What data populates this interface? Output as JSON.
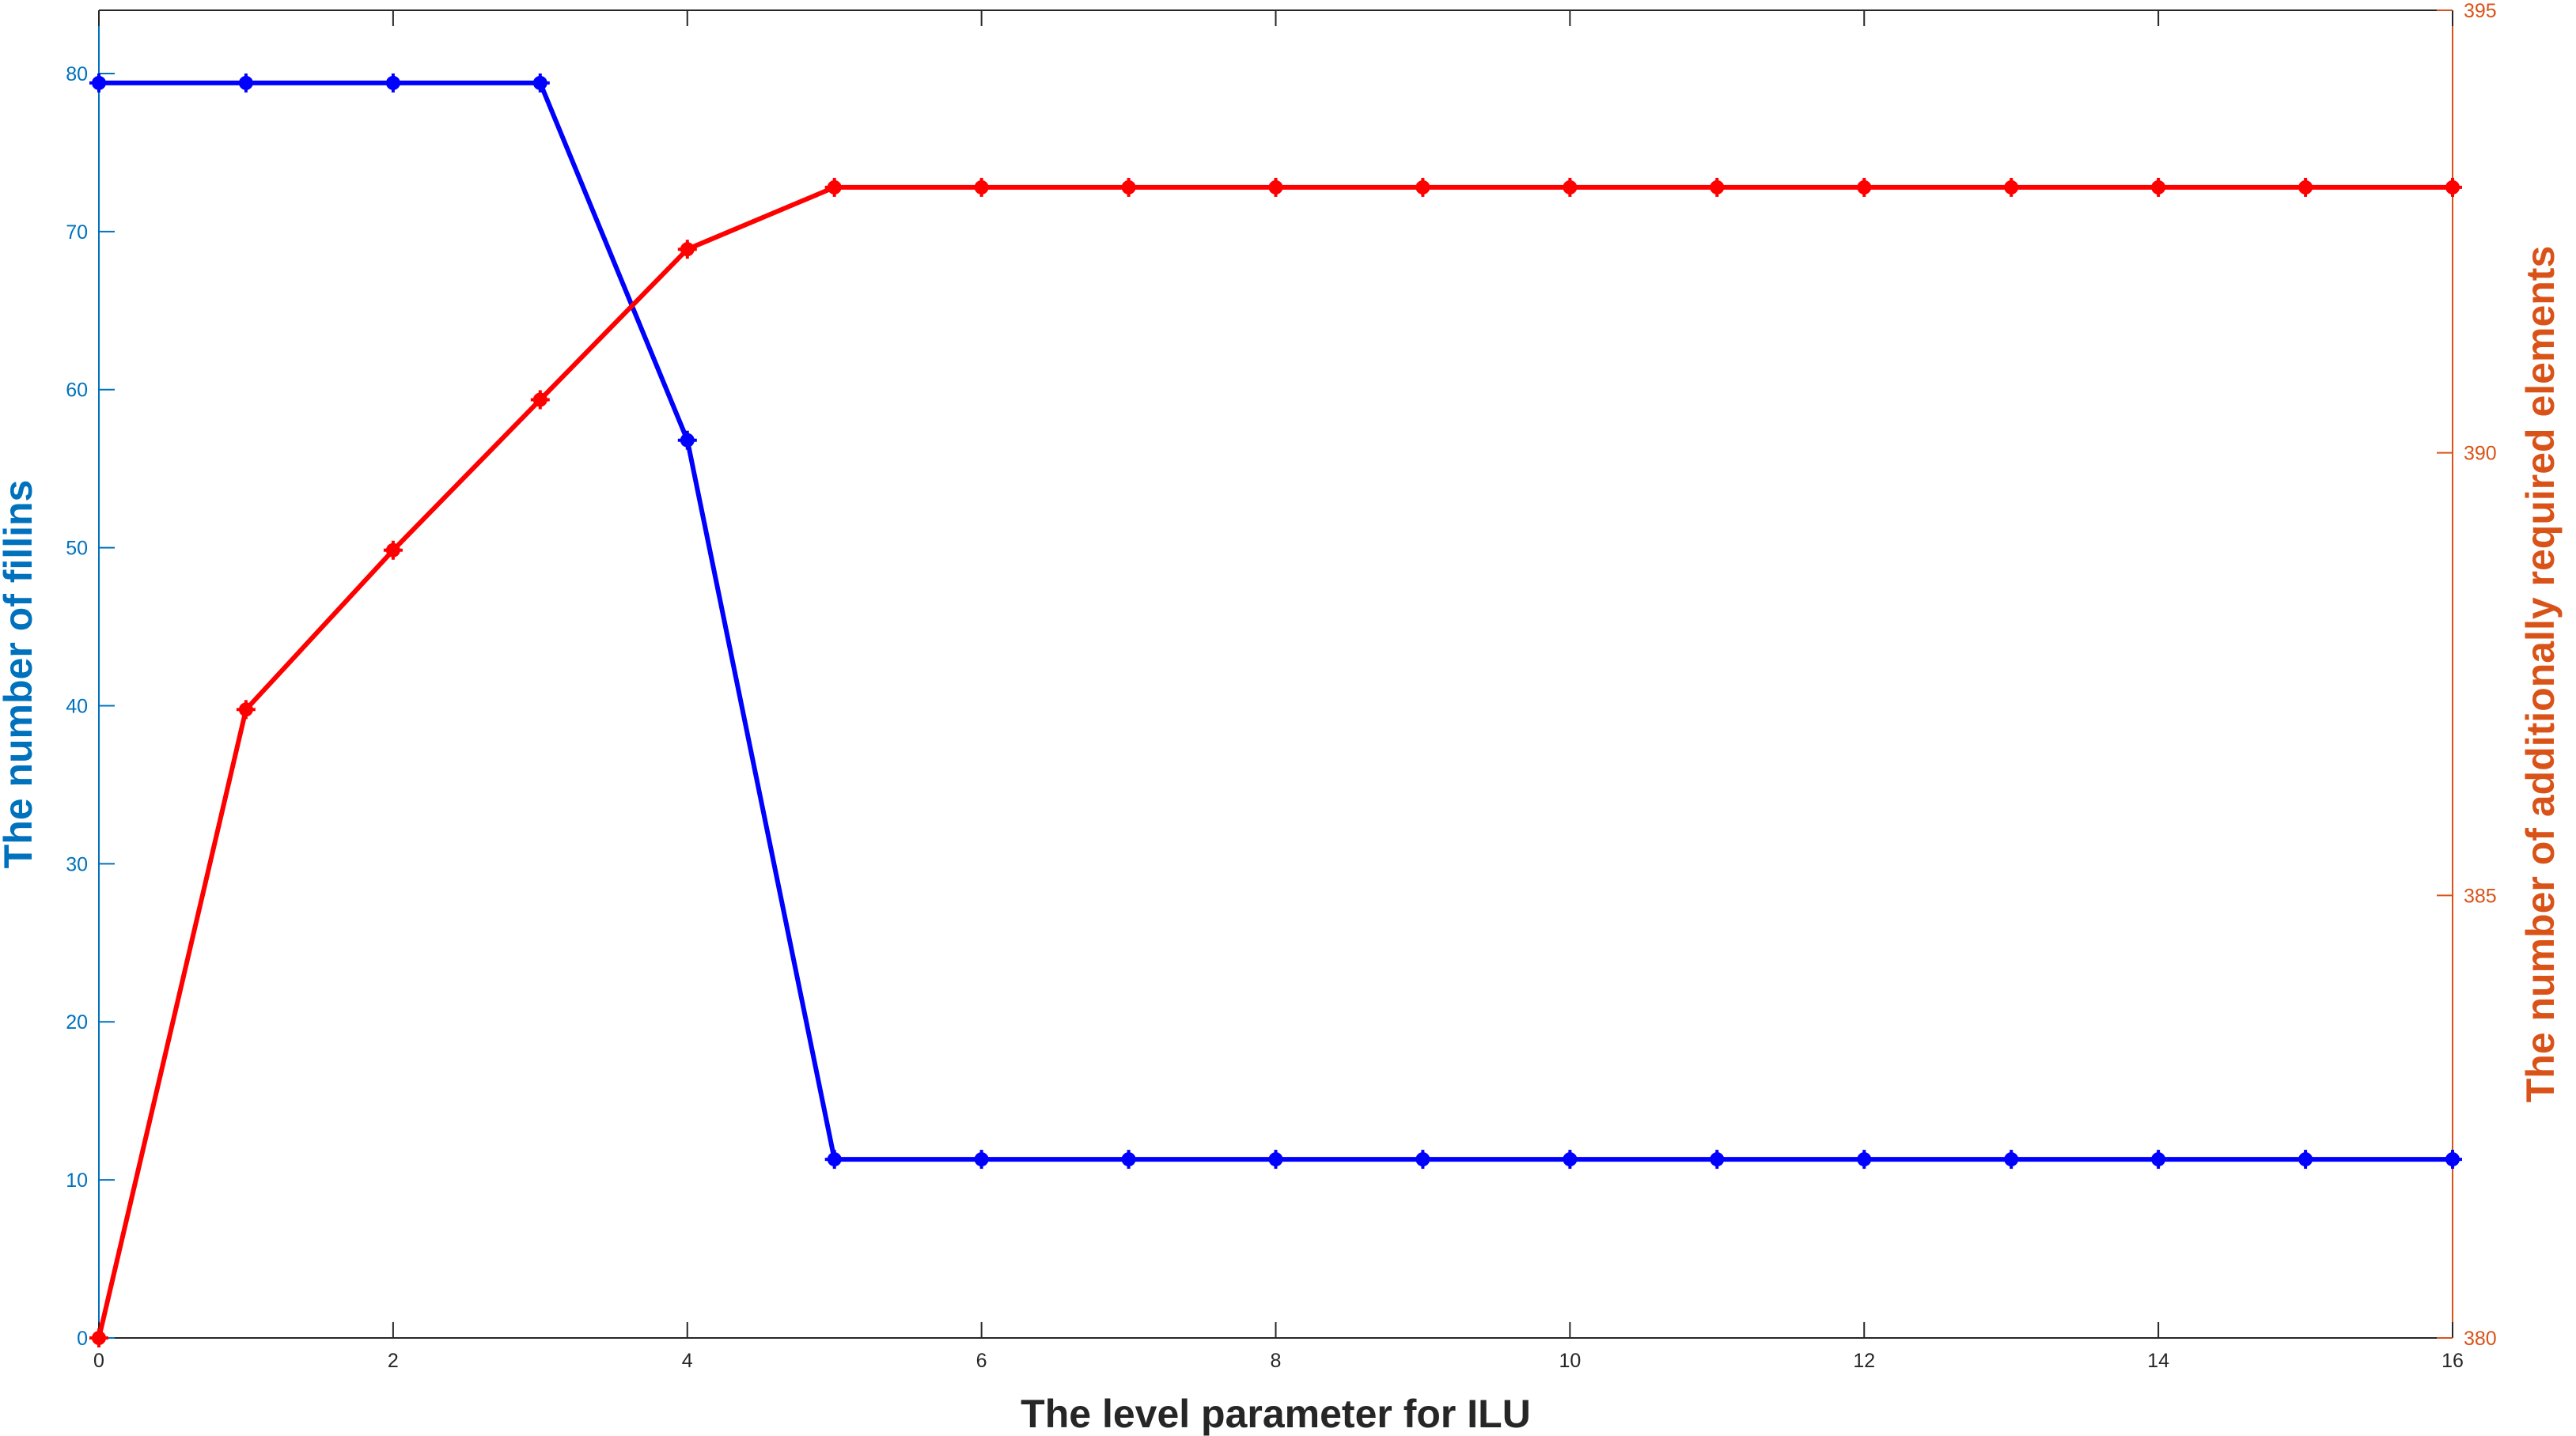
{
  "chart_data": {
    "type": "line",
    "xlabel": "The level parameter for ILU",
    "ylabel_left": "The number of fillins",
    "ylabel_right": "The number of additionally required elements",
    "x": [
      0,
      1,
      2,
      3,
      4,
      5,
      6,
      7,
      8,
      9,
      10,
      11,
      12,
      13,
      14,
      15,
      16
    ],
    "xlim": [
      0,
      16
    ],
    "xticks": [
      0,
      2,
      4,
      6,
      8,
      10,
      12,
      14,
      16
    ],
    "ylim_left": [
      0,
      84
    ],
    "yticks_left": [
      0,
      10,
      20,
      30,
      40,
      50,
      60,
      70,
      80
    ],
    "ylim_right": [
      380,
      395
    ],
    "yticks_right": [
      380,
      385,
      390,
      395
    ],
    "grid": false,
    "series": [
      {
        "axis": "left",
        "color": "#0000ff",
        "values": [
          79.4,
          79.4,
          79.4,
          79.4,
          56.8,
          11.3,
          11.3,
          11.3,
          11.3,
          11.3,
          11.3,
          11.3,
          11.3,
          11.3,
          11.3,
          11.3,
          11.3
        ]
      },
      {
        "axis": "right",
        "color": "#ff0000",
        "values": [
          380.0,
          387.1,
          388.9,
          390.6,
          392.3,
          393.0,
          393.0,
          393.0,
          393.0,
          393.0,
          393.0,
          393.0,
          393.0,
          393.0,
          393.0,
          393.0,
          393.0
        ]
      }
    ],
    "colors": {
      "left_axis": "#0072bd",
      "right_axis": "#d95319",
      "bottom_axis": "#262626"
    }
  }
}
